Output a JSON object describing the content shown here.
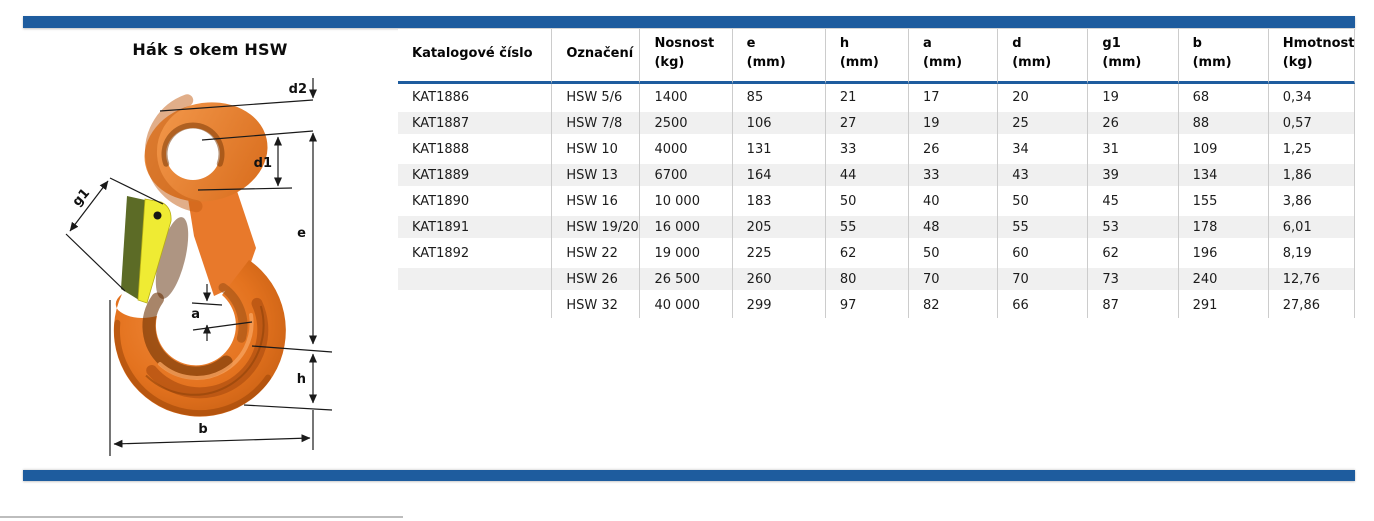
{
  "title": "Hák s okem HSW",
  "colors": {
    "accent": "#1e5c9e",
    "hook_body": "#e8792b",
    "latch_yellow": "#efeb33",
    "latch_olive": "#5c6b26",
    "dim_line": "#1a1a1a"
  },
  "drawing": {
    "labels": {
      "d2": "d2",
      "d1": "d1",
      "g1": "g1",
      "e": "e",
      "a": "a",
      "h": "h",
      "b": "b"
    }
  },
  "table": {
    "columns": [
      {
        "label": "Katalogové číslo",
        "unit": ""
      },
      {
        "label": "Označení",
        "unit": ""
      },
      {
        "label": "Nosnost",
        "unit": "(kg)"
      },
      {
        "label": "e",
        "unit": "(mm)"
      },
      {
        "label": "h",
        "unit": "(mm)"
      },
      {
        "label": "a",
        "unit": "(mm)"
      },
      {
        "label": "d",
        "unit": "(mm)"
      },
      {
        "label": "g1",
        "unit": "(mm)"
      },
      {
        "label": "b",
        "unit": "(mm)"
      },
      {
        "label": "Hmotnost",
        "unit": "(kg)"
      }
    ],
    "rows": [
      [
        "KAT1886",
        "HSW 5/6",
        "1400",
        "85",
        "21",
        "17",
        "20",
        "19",
        "68",
        "0,34"
      ],
      [
        "KAT1887",
        "HSW 7/8",
        "2500",
        "106",
        "27",
        "19",
        "25",
        "26",
        "88",
        "0,57"
      ],
      [
        "KAT1888",
        "HSW 10",
        "4000",
        "131",
        "33",
        "26",
        "34",
        "31",
        "109",
        "1,25"
      ],
      [
        "KAT1889",
        "HSW 13",
        "6700",
        "164",
        "44",
        "33",
        "43",
        "39",
        "134",
        "1,86"
      ],
      [
        "KAT1890",
        "HSW 16",
        "10 000",
        "183",
        "50",
        "40",
        "50",
        "45",
        "155",
        "3,86"
      ],
      [
        "KAT1891",
        "HSW 19/20",
        "16 000",
        "205",
        "55",
        "48",
        "55",
        "53",
        "178",
        "6,01"
      ],
      [
        "KAT1892",
        "HSW 22",
        "19 000",
        "225",
        "62",
        "50",
        "60",
        "62",
        "196",
        "8,19"
      ],
      [
        "",
        "HSW 26",
        "26 500",
        "260",
        "80",
        "70",
        "70",
        "73",
        "240",
        "12,76"
      ],
      [
        "",
        "HSW 32",
        "40 000",
        "299",
        "97",
        "82",
        "66",
        "87",
        "291",
        "27,86"
      ]
    ]
  }
}
